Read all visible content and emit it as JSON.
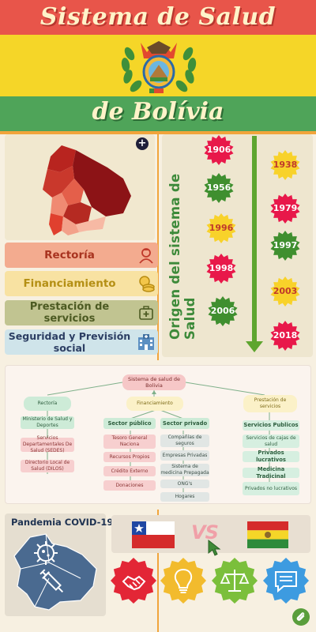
{
  "header": {
    "title_line1": "Sistema de Salud",
    "title_line2": "de Bolívia"
  },
  "categories": [
    {
      "label": "Rectoría",
      "icon": "doctor-icon"
    },
    {
      "label": "Financiamiento",
      "icon": "coins-icon"
    },
    {
      "label": "Prestación de servicios",
      "icon": "medical-kit-icon"
    },
    {
      "label": "Seguridad y Previsión social",
      "icon": "hospital-icon"
    }
  ],
  "timeline": {
    "title": "Origen del sistema de Salud",
    "years": [
      "1906",
      "1938",
      "1956",
      "1979",
      "1996",
      "1997",
      "1998",
      "2003",
      "2006",
      "2018"
    ]
  },
  "org_chart": {
    "root": "Sistema de salud de Bolivia",
    "level1": [
      "Rectoría",
      "Financiamiento",
      "Prestación de servicios"
    ],
    "rectoria": [
      "Ministerio de Salud y Deportes",
      "Servicios Departamentales De Salud (SEDES)",
      "Directorio Local de Salud (DILOS)"
    ],
    "publico_header": "Sector público",
    "publico": [
      "Tesoro General Naciona",
      "Recursos Propios",
      "Crédito Externo",
      "Donaciones"
    ],
    "privado_header": "Sector privado",
    "privado": [
      "Compañías de seguros",
      "Empresas Privadas",
      "Sistema de medicina Prepagada",
      "ONG's",
      "Hogares"
    ],
    "prestacion": [
      "Servicios Publicos",
      "Servicios de cajas de salud",
      "Privados lucrativos",
      "Medicina Tradicinal",
      "Privados no lucrativos"
    ]
  },
  "covid": {
    "title": "Pandemia COVID-19"
  },
  "vs": {
    "label": "VS"
  },
  "badges": [
    "handshake-icon",
    "lightbulb-icon",
    "scales-icon",
    "chat-icon"
  ]
}
